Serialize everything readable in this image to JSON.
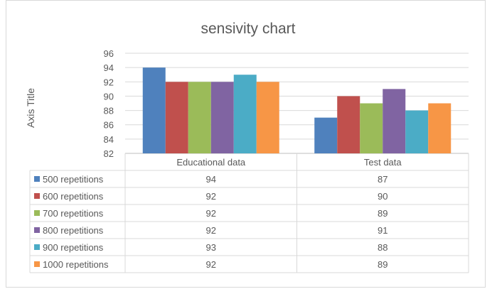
{
  "chart_data": {
    "type": "bar",
    "title": "sensivity chart",
    "ylabel": "Axis Title",
    "xlabel": "",
    "categories": [
      "Educational data",
      "Test data"
    ],
    "ylim": [
      82,
      96
    ],
    "yticks": [
      82,
      84,
      86,
      88,
      90,
      92,
      94,
      96
    ],
    "grid": true,
    "legend": "data-table",
    "series": [
      {
        "name": "500 repetitions",
        "values": [
          94,
          87
        ],
        "color": "#4f81bd"
      },
      {
        "name": "600 repetitions",
        "values": [
          92,
          90
        ],
        "color": "#c0504d"
      },
      {
        "name": "700 repetitions",
        "values": [
          92,
          89
        ],
        "color": "#9bbb59"
      },
      {
        "name": "800 repetitions",
        "values": [
          92,
          91
        ],
        "color": "#8064a2"
      },
      {
        "name": "900 repetitions",
        "values": [
          93,
          88
        ],
        "color": "#4bacc6"
      },
      {
        "name": "1000 repetitions",
        "values": [
          92,
          89
        ],
        "color": "#f79646"
      }
    ]
  }
}
